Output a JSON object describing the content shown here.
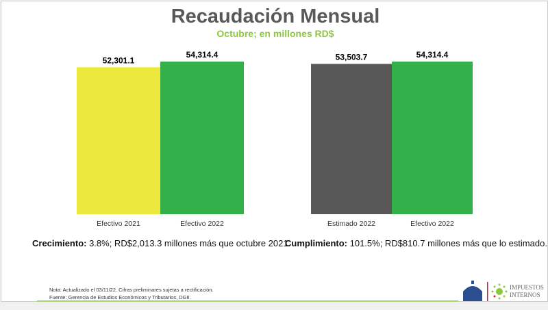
{
  "title": "Recaudación Mensual",
  "subtitle": "Octubre; en millones RD$",
  "chart_data": [
    {
      "type": "bar",
      "categories": [
        "Efectivo 2021",
        "Efectivo 2022"
      ],
      "values": [
        52301.1,
        54314.4
      ],
      "data_labels": [
        "52,301.1",
        "54,314.4"
      ],
      "colors": [
        "#ebe73c",
        "#33b04a"
      ],
      "ylim": [
        0,
        54314.4
      ]
    },
    {
      "type": "bar",
      "categories": [
        "Estimado 2022",
        "Efectivo 2022"
      ],
      "values": [
        53503.7,
        54314.4
      ],
      "data_labels": [
        "53,503.7",
        "54,314.4"
      ],
      "colors": [
        "#585858",
        "#33b04a"
      ],
      "ylim": [
        0,
        54314.4
      ]
    }
  ],
  "notes": {
    "growth_label": "Crecimiento:",
    "growth_text": " 3.8%; RD$2,013.3 millones más que octubre 2021.",
    "compliance_label": "Cumplimiento:",
    "compliance_text": " 101.5%; RD$810.7 millones más que lo estimado."
  },
  "footer": {
    "note": "Nota: Actualizado el 03/11/22. Cifras preliminares sujetas a rectificación.",
    "source": "Fuente: Gerencia de Estudios Económicos y Tributarios, DGII.",
    "logo_text": "IMPUESTOS INTERNOS"
  }
}
